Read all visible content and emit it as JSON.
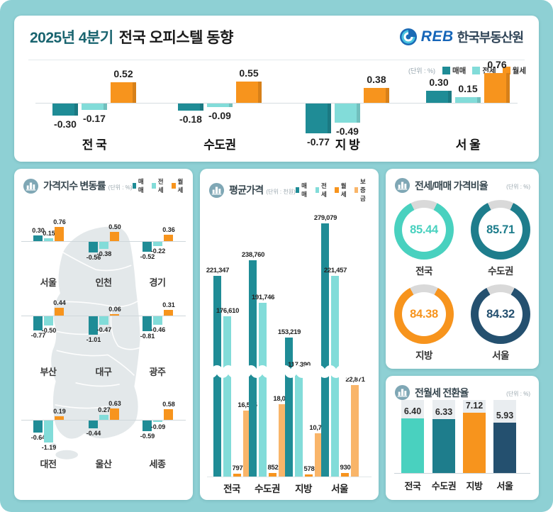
{
  "header": {
    "title_highlight": "2025년 4분기",
    "title_rest": "전국 오피스텔 동향",
    "logo_brand": "REB",
    "logo_org": "한국부동산원"
  },
  "top_unit": "(단위 : %)",
  "panels": {
    "regional": {
      "title": "가격지수 변동률",
      "unit": "(단위 : %)"
    },
    "price": {
      "title": "평균가격",
      "unit": "(단위 : 천원)"
    },
    "ratio": {
      "title": "전세/매매 가격비율",
      "unit": "(단위 : %)"
    },
    "conversion": {
      "title": "전월세 전환율",
      "unit": "(단위 : %)"
    }
  },
  "colors": {
    "sale": "#1f8c96",
    "jeonse": "#82dcd9",
    "monthly": "#f7941d",
    "deposit": "#f9b569",
    "mint": "#49d1bf",
    "dteal": "#1e7d8c",
    "orange": "#f7941d",
    "navy": "#24506f",
    "donut_gray": "#d9d9d9"
  },
  "chart_data": [
    {
      "id": "quarterly_change",
      "type": "bar",
      "title": "2025년 4분기 전국 오피스텔 동향",
      "unit": "%",
      "legend": [
        "매매",
        "전세",
        "월세"
      ],
      "legend_position": "top-right",
      "categories": [
        "전 국",
        "수도권",
        "지 방",
        "서 울"
      ],
      "series": [
        {
          "name": "매매",
          "values": [
            -0.3,
            -0.18,
            -0.77,
            0.3
          ]
        },
        {
          "name": "전세",
          "values": [
            -0.17,
            -0.09,
            -0.49,
            0.15
          ]
        },
        {
          "name": "월세",
          "values": [
            0.52,
            0.55,
            0.38,
            0.76
          ]
        }
      ],
      "ylim": [
        -0.9,
        0.9
      ],
      "grid": false
    },
    {
      "id": "regional_price_index_change",
      "type": "bar",
      "title": "가격지수 변동률",
      "unit": "%",
      "legend": [
        "매매",
        "전세",
        "월세"
      ],
      "regions": [
        {
          "name": "서울",
          "row": 0,
          "col": 0,
          "values": [
            0.3,
            0.15,
            0.76
          ]
        },
        {
          "name": "인천",
          "row": 0,
          "col": 1,
          "values": [
            -0.56,
            -0.38,
            0.5
          ]
        },
        {
          "name": "경기",
          "row": 0,
          "col": 2,
          "values": [
            -0.52,
            -0.22,
            0.36
          ]
        },
        {
          "name": "부산",
          "row": 1,
          "col": 0,
          "values": [
            -0.77,
            -0.5,
            0.44
          ]
        },
        {
          "name": "대구",
          "row": 1,
          "col": 1,
          "values": [
            -1.01,
            -0.47,
            0.06
          ]
        },
        {
          "name": "광주",
          "row": 1,
          "col": 2,
          "values": [
            -0.81,
            -0.46,
            0.31
          ]
        },
        {
          "name": "대전",
          "row": 2,
          "col": 0,
          "values": [
            -0.64,
            -1.19,
            0.19
          ]
        },
        {
          "name": "울산",
          "row": 2,
          "col": 1,
          "values": [
            -0.44,
            0.27,
            0.63
          ]
        },
        {
          "name": "세종",
          "row": 2,
          "col": 2,
          "values": [
            -0.59,
            -0.09,
            0.58
          ]
        }
      ]
    },
    {
      "id": "average_price",
      "type": "bar",
      "title": "평균가격",
      "unit": "천원",
      "legend": [
        "매매",
        "전세",
        "월세",
        "보증금"
      ],
      "categories": [
        "전국",
        "수도권",
        "지방",
        "서울"
      ],
      "series": [
        {
          "name": "매매",
          "values": [
            221347,
            238760,
            153219,
            279079
          ]
        },
        {
          "name": "전세",
          "values": [
            176610,
            191746,
            117390,
            221457
          ]
        },
        {
          "name": "월세",
          "values": [
            797,
            852,
            578,
            930
          ]
        },
        {
          "name": "보증금",
          "values": [
            16545,
            18031,
            10732,
            22871
          ]
        }
      ],
      "axis_break": true
    },
    {
      "id": "jeonse_sale_ratio",
      "type": "donut",
      "title": "전세/매매 가격비율",
      "unit": "%",
      "items": [
        {
          "label": "전국",
          "value": 85.44,
          "color": "mint"
        },
        {
          "label": "수도권",
          "value": 85.71,
          "color": "dteal"
        },
        {
          "label": "지방",
          "value": 84.38,
          "color": "orange"
        },
        {
          "label": "서울",
          "value": 84.32,
          "color": "navy"
        }
      ]
    },
    {
      "id": "jeonse_monthly_conversion_rate",
      "type": "bar",
      "title": "전월세 전환율",
      "unit": "%",
      "categories": [
        "전국",
        "수도권",
        "지방",
        "서울"
      ],
      "values": [
        6.4,
        6.33,
        7.12,
        5.93
      ],
      "colors": [
        "mint",
        "dteal",
        "orange",
        "navy"
      ],
      "ylim": [
        0,
        8.6
      ]
    }
  ]
}
